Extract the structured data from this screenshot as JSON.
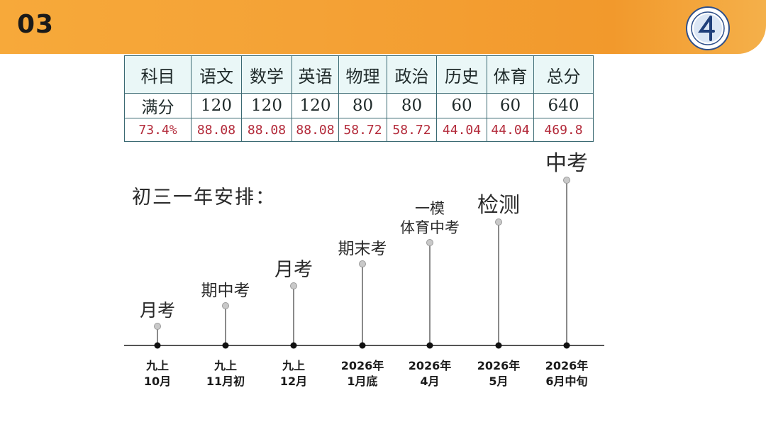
{
  "header": {
    "section_number": "03"
  },
  "table": {
    "rows": [
      [
        "科目",
        "语文",
        "数学",
        "英语",
        "物理",
        "政治",
        "历史",
        "体育",
        "总分"
      ],
      [
        "满分",
        "120",
        "120",
        "120",
        "80",
        "80",
        "60",
        "60",
        "640"
      ],
      [
        "73.4%",
        "88.08",
        "88.08",
        "88.08",
        "58.72",
        "58.72",
        "44.04",
        "44.04",
        "469.8"
      ]
    ]
  },
  "schedule": {
    "title": "初三一年安排：",
    "events": [
      {
        "label_lines": [
          "月考"
        ],
        "date_lines": [
          "九上",
          "10月"
        ]
      },
      {
        "label_lines": [
          "期中考"
        ],
        "date_lines": [
          "九上",
          "11月初"
        ]
      },
      {
        "label_lines": [
          "月考"
        ],
        "date_lines": [
          "九上",
          "12月"
        ]
      },
      {
        "label_lines": [
          "期末考"
        ],
        "date_lines": [
          "2026年",
          "1月底"
        ]
      },
      {
        "label_lines": [
          "一模",
          "体育中考"
        ],
        "date_lines": [
          "2026年",
          "4月"
        ]
      },
      {
        "label_lines": [
          "检测"
        ],
        "date_lines": [
          "2026年",
          "5月"
        ]
      },
      {
        "label_lines": [
          "中考"
        ],
        "date_lines": [
          "2026年",
          "6月中旬"
        ]
      }
    ]
  },
  "colors": {
    "header": "#f4a236",
    "table_bg": "#eaf7f7",
    "pct_text": "#b32a3a",
    "timeline": "#555555"
  }
}
